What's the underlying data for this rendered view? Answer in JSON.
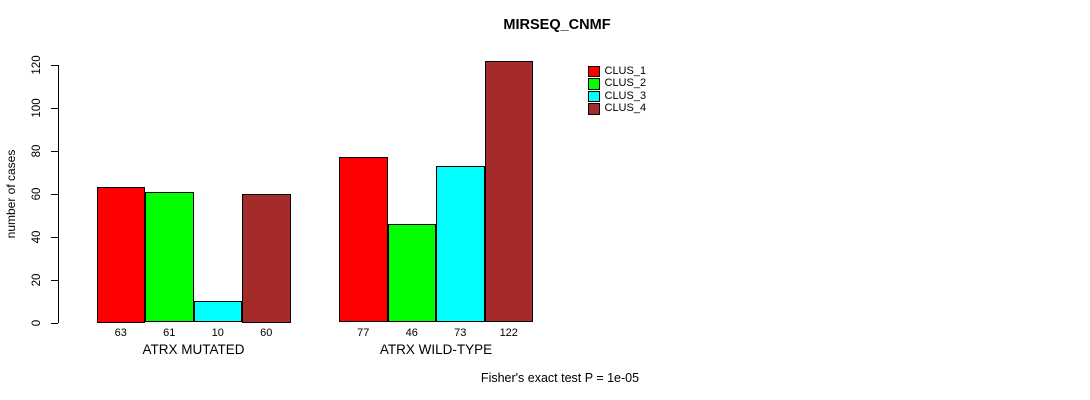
{
  "chart_data": {
    "type": "bar",
    "title": "MIRSEQ_CNMF",
    "ylabel": "number of cases",
    "xlabel": "",
    "ylim": [
      0,
      120
    ],
    "yticks": [
      0,
      20,
      40,
      60,
      80,
      100,
      120
    ],
    "groups": [
      "ATRX MUTATED",
      "ATRX WILD-TYPE"
    ],
    "series": [
      {
        "name": "CLUS_1",
        "color": "#ff0000",
        "values": [
          63,
          77
        ]
      },
      {
        "name": "CLUS_2",
        "color": "#00ff00",
        "values": [
          61,
          46
        ]
      },
      {
        "name": "CLUS_3",
        "color": "#00ffff",
        "values": [
          10,
          73
        ]
      },
      {
        "name": "CLUS_4",
        "color": "#a52a2a",
        "values": [
          60,
          122
        ]
      }
    ],
    "bar_labels": [
      [
        63,
        61,
        10,
        60
      ],
      [
        77,
        46,
        73,
        122
      ]
    ],
    "annotation": "Fisher's exact test P = 1e-05",
    "legend_position": "top-right",
    "grid": false,
    "axis_color": "#000000",
    "background_color": "#ffffff"
  }
}
